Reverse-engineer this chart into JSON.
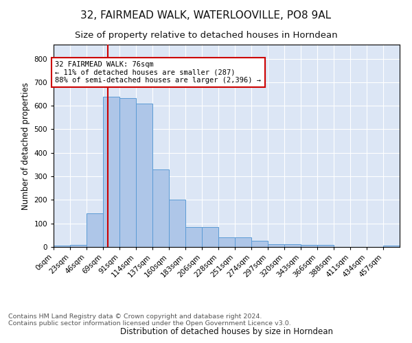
{
  "title1": "32, FAIRMEAD WALK, WATERLOOVILLE, PO8 9AL",
  "title2": "Size of property relative to detached houses in Horndean",
  "xlabel": "Distribution of detached houses by size in Horndean",
  "ylabel": "Number of detached properties",
  "bar_values": [
    7,
    8,
    143,
    638,
    632,
    610,
    330,
    200,
    85,
    85,
    40,
    40,
    25,
    12,
    12,
    10,
    8,
    0,
    0,
    0,
    7
  ],
  "n_bars": 21,
  "bin_labels": [
    "0sqm",
    "23sqm",
    "46sqm",
    "69sqm",
    "91sqm",
    "114sqm",
    "137sqm",
    "160sqm",
    "183sqm",
    "206sqm",
    "228sqm",
    "251sqm",
    "274sqm",
    "297sqm",
    "320sqm",
    "343sqm",
    "366sqm",
    "388sqm",
    "411sqm",
    "434sqm",
    "457sqm"
  ],
  "bar_color": "#aec6e8",
  "bar_edge_color": "#5b9bd5",
  "vline_bin": 3.3,
  "vline_color": "#cc0000",
  "annotation_text": "32 FAIRMEAD WALK: 76sqm\n← 11% of detached houses are smaller (287)\n88% of semi-detached houses are larger (2,396) →",
  "annotation_box_color": "#ffffff",
  "annotation_box_edge": "#cc0000",
  "ylim": [
    0,
    860
  ],
  "yticks": [
    0,
    100,
    200,
    300,
    400,
    500,
    600,
    700,
    800
  ],
  "footer1": "Contains HM Land Registry data © Crown copyright and database right 2024.",
  "footer2": "Contains public sector information licensed under the Open Government Licence v3.0.",
  "bg_color": "#dce6f5",
  "fig_bg_color": "#ffffff",
  "title1_fontsize": 11,
  "title2_fontsize": 9.5,
  "axis_label_fontsize": 8.5,
  "tick_fontsize": 7.5,
  "footer_fontsize": 6.8,
  "annot_fontsize": 7.5
}
